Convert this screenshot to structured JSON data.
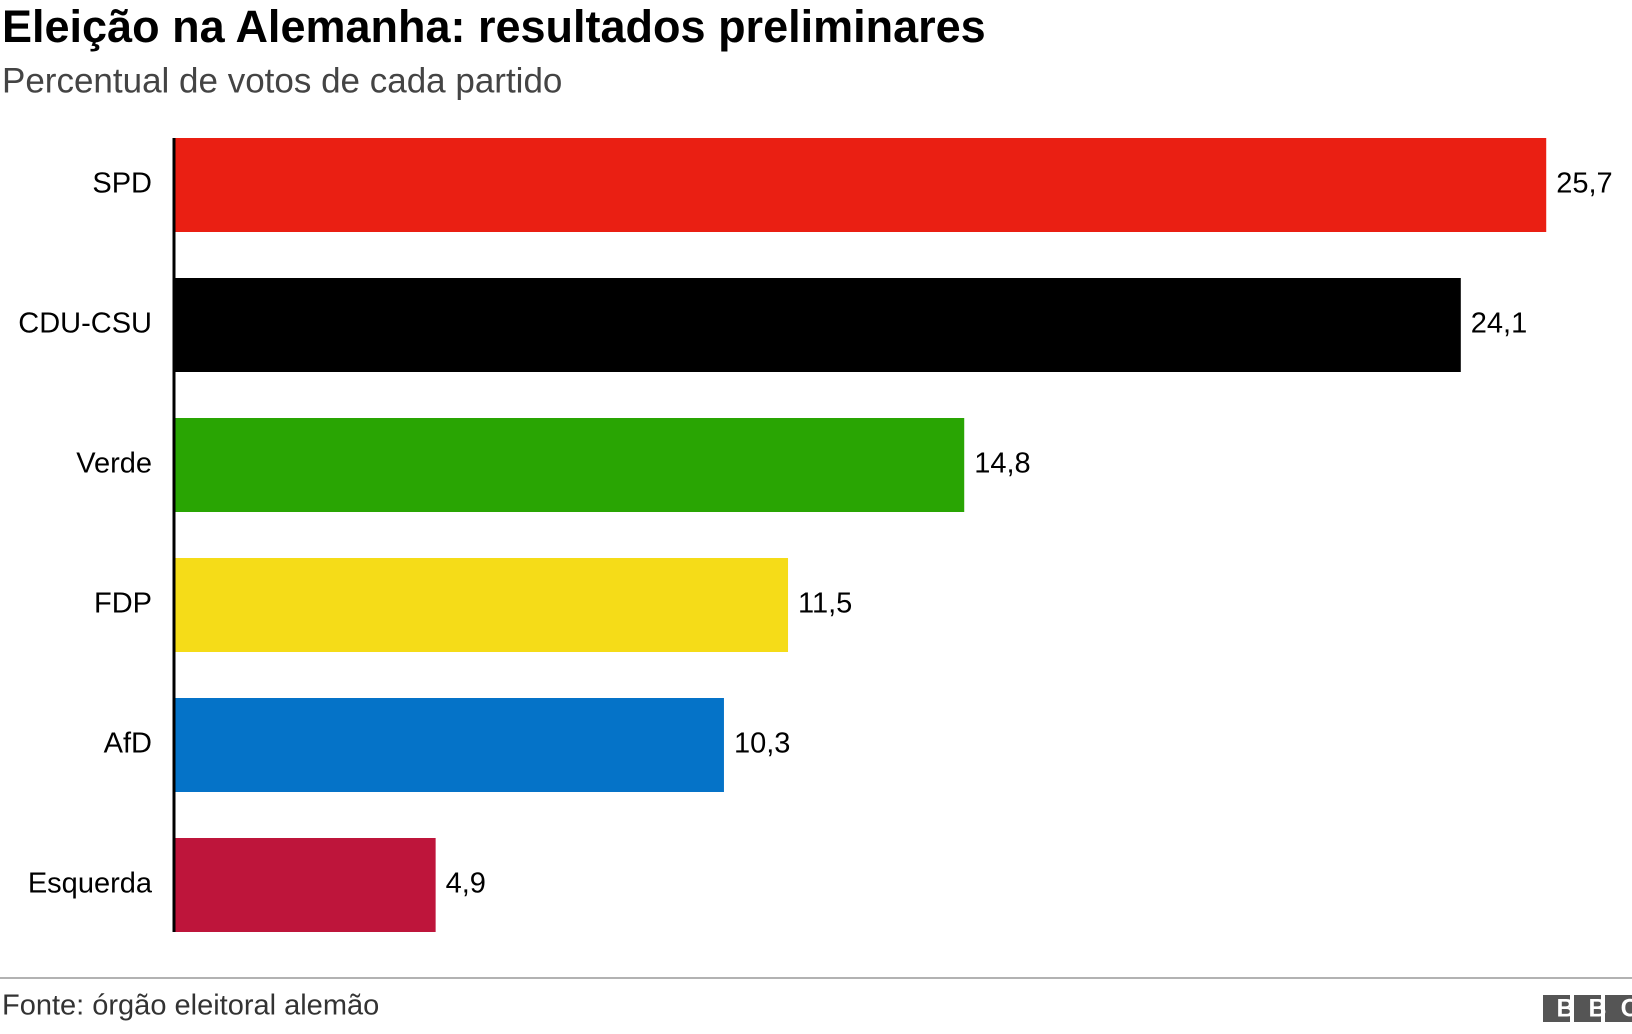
{
  "chart_data": {
    "type": "hbar",
    "title": "Eleição na Alemanha: resultados preliminares",
    "subtitle": "Percentual de votos de cada partido",
    "categories": [
      "SPD",
      "CDU-CSU",
      "Verde",
      "FDP",
      "AfD",
      "Esquerda"
    ],
    "values": [
      25.7,
      24.1,
      14.8,
      11.5,
      10.3,
      4.9
    ],
    "value_labels": [
      "25,7",
      "24,1",
      "14,8",
      "11,5",
      "10,3",
      "4,9"
    ],
    "colors": [
      "#ea1f13",
      "#000000",
      "#29a503",
      "#f5dc18",
      "#0573c8",
      "#be153b"
    ],
    "source": "Fonte: órgão eleitoral alemão",
    "logo": "BBC"
  }
}
